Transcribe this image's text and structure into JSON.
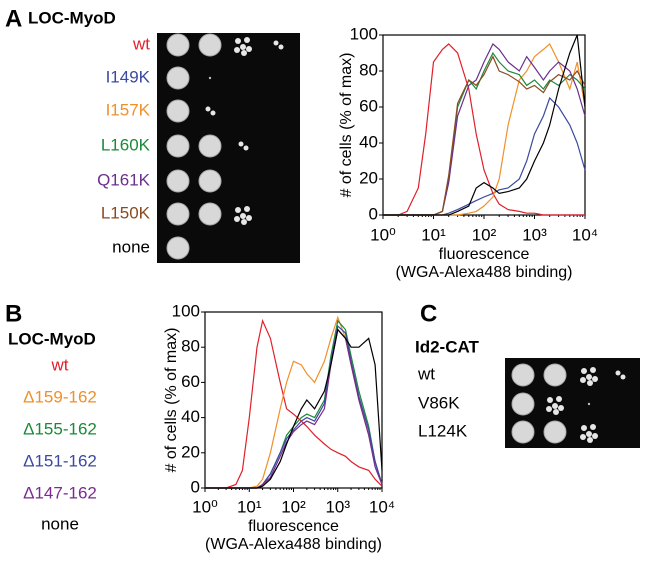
{
  "chart_data": [
    {
      "type": "line",
      "panel": "A",
      "construct": "LOC-MyoD",
      "y_label": "# of cells (% of max)",
      "x_label": "fluorescence",
      "x_label_2": "(WGA-Alexa488 binding)",
      "log_x": true,
      "xlim": [
        1,
        10000
      ],
      "ylim": [
        0,
        100
      ],
      "xticks": [
        {
          "value": 1,
          "label": "10⁰"
        },
        {
          "value": 10,
          "label": "10¹"
        },
        {
          "value": 100,
          "label": "10²"
        },
        {
          "value": 1000,
          "label": "10³"
        },
        {
          "value": 10000,
          "label": "10⁴"
        }
      ],
      "yticks": [
        0,
        20,
        40,
        60,
        80,
        100
      ],
      "x": [
        1,
        2,
        3,
        5,
        7,
        10,
        15,
        20,
        30,
        50,
        70,
        100,
        150,
        200,
        300,
        500,
        700,
        1000,
        1500,
        2000,
        3000,
        5000,
        7000,
        10000
      ],
      "series": [
        {
          "name": "wt",
          "color": "#e0202a",
          "values": [
            0,
            0,
            2,
            15,
            45,
            85,
            92,
            95,
            90,
            70,
            45,
            25,
            12,
            6,
            3,
            2,
            1,
            1,
            0,
            0,
            0,
            0,
            0,
            0
          ]
        },
        {
          "name": "I149K",
          "color": "#3a4aa0",
          "values": [
            0,
            0,
            0,
            0,
            0,
            0,
            0,
            1,
            3,
            6,
            8,
            10,
            12,
            14,
            15,
            20,
            30,
            45,
            55,
            65,
            60,
            50,
            40,
            25
          ]
        },
        {
          "name": "I157K",
          "color": "#f0902a",
          "values": [
            0,
            0,
            0,
            0,
            0,
            0,
            0,
            0,
            0,
            1,
            2,
            5,
            10,
            20,
            50,
            75,
            80,
            88,
            92,
            95,
            85,
            70,
            85,
            60
          ]
        },
        {
          "name": "L160K",
          "color": "#1a8a3a",
          "values": [
            0,
            0,
            0,
            0,
            0,
            0,
            2,
            20,
            60,
            75,
            70,
            80,
            90,
            85,
            80,
            78,
            72,
            75,
            70,
            75,
            72,
            78,
            75,
            70
          ]
        },
        {
          "name": "Q161K",
          "color": "#6a3090",
          "values": [
            0,
            0,
            0,
            0,
            0,
            0,
            2,
            18,
            55,
            72,
            75,
            85,
            95,
            92,
            85,
            80,
            88,
            82,
            75,
            80,
            85,
            80,
            70,
            55
          ]
        },
        {
          "name": "L150K",
          "color": "#8a4a20",
          "values": [
            0,
            0,
            0,
            0,
            0,
            0,
            2,
            22,
            62,
            75,
            72,
            78,
            88,
            80,
            78,
            74,
            70,
            72,
            68,
            74,
            78,
            75,
            80,
            72
          ]
        },
        {
          "name": "none",
          "color": "#000000",
          "values": [
            0,
            0,
            0,
            0,
            0,
            0,
            0,
            0,
            2,
            5,
            15,
            18,
            15,
            12,
            13,
            15,
            20,
            30,
            40,
            50,
            70,
            90,
            100,
            60
          ]
        }
      ]
    },
    {
      "type": "line",
      "panel": "B",
      "construct": "LOC-MyoD",
      "y_label": "# of cells (% of max)",
      "x_label": "fluorescence",
      "x_label_2": "(WGA-Alexa488 binding)",
      "log_x": true,
      "xlim": [
        1,
        10000
      ],
      "ylim": [
        0,
        100
      ],
      "xticks": [
        {
          "value": 1,
          "label": "10⁰"
        },
        {
          "value": 10,
          "label": "10¹"
        },
        {
          "value": 100,
          "label": "10²"
        },
        {
          "value": 1000,
          "label": "10³"
        },
        {
          "value": 10000,
          "label": "10⁴"
        }
      ],
      "yticks": [
        0,
        20,
        40,
        60,
        80,
        100
      ],
      "x": [
        1,
        2,
        3,
        5,
        7,
        10,
        15,
        20,
        30,
        50,
        70,
        100,
        150,
        200,
        300,
        500,
        700,
        1000,
        1500,
        2000,
        3000,
        5000,
        7000,
        10000
      ],
      "series": [
        {
          "name": "wt",
          "color": "#e0202a",
          "values": [
            0,
            0,
            0,
            2,
            10,
            40,
            80,
            95,
            85,
            60,
            45,
            42,
            38,
            35,
            30,
            25,
            22,
            20,
            18,
            15,
            12,
            10,
            5,
            1
          ]
        },
        {
          "name": "Δ159-162",
          "color": "#f0902a",
          "values": [
            0,
            0,
            0,
            0,
            0,
            0,
            1,
            5,
            20,
            45,
            60,
            72,
            70,
            65,
            60,
            72,
            85,
            97,
            85,
            70,
            50,
            30,
            15,
            2
          ]
        },
        {
          "name": "Δ155-162",
          "color": "#1a8a3a",
          "values": [
            0,
            0,
            0,
            0,
            0,
            0,
            0,
            2,
            8,
            20,
            30,
            35,
            40,
            42,
            40,
            50,
            75,
            95,
            90,
            75,
            55,
            35,
            15,
            2
          ]
        },
        {
          "name": "Δ151-162",
          "color": "#3a4aa0",
          "values": [
            0,
            0,
            0,
            0,
            0,
            0,
            0,
            2,
            8,
            20,
            28,
            33,
            38,
            40,
            38,
            48,
            72,
            92,
            88,
            72,
            52,
            33,
            15,
            2
          ]
        },
        {
          "name": "Δ147-162",
          "color": "#7a2a90",
          "values": [
            0,
            0,
            0,
            0,
            0,
            0,
            0,
            2,
            6,
            18,
            26,
            32,
            36,
            38,
            36,
            45,
            70,
            90,
            85,
            70,
            50,
            30,
            12,
            2
          ]
        },
        {
          "name": "none",
          "color": "#000000",
          "values": [
            0,
            0,
            0,
            0,
            0,
            0,
            0,
            1,
            5,
            15,
            25,
            35,
            45,
            50,
            45,
            55,
            70,
            90,
            85,
            80,
            80,
            85,
            70,
            10
          ]
        }
      ]
    }
  ],
  "panel_c": {
    "panel": "C",
    "construct": "Id2-CAT",
    "strains": [
      "wt",
      "V86K",
      "L124K"
    ]
  }
}
